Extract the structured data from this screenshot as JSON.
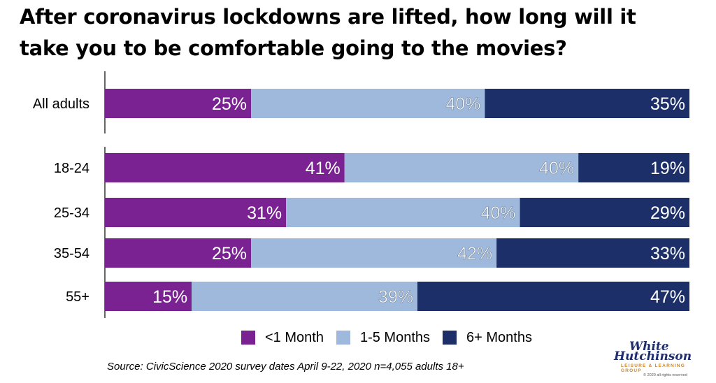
{
  "title": {
    "line1": "After coronavirus lockdowns are lifted, how long will it",
    "line2": "take you to be comfortable going to the movies?"
  },
  "source": "Source: CivicScience 2020 survey dates April 9-22, 2020 n=4,055 adults 18+",
  "logo": {
    "line1": "White",
    "line2": "Hutchinson",
    "tagline": "LEISURE & LEARNING GROUP",
    "copyright": "© 2020 all rights reserved"
  },
  "colors": {
    "lt1": "#7b2292",
    "mid": "#9fb9dc",
    "gt6": "#1c2f69"
  },
  "chart_data": {
    "type": "bar",
    "orientation": "horizontal",
    "stacked": true,
    "categories": [
      "All adults",
      "18-24",
      "25-34",
      "35-54",
      "55+"
    ],
    "series": [
      {
        "name": "<1 Month",
        "values": [
          25,
          41,
          31,
          25,
          15
        ]
      },
      {
        "name": "1-5 Months",
        "values": [
          40,
          40,
          40,
          42,
          39
        ]
      },
      {
        "name": "6+ Months",
        "values": [
          35,
          19,
          29,
          33,
          47
        ]
      }
    ],
    "value_suffix": "%",
    "xlim": [
      0,
      100
    ],
    "legend": "bottom",
    "grid": false
  }
}
